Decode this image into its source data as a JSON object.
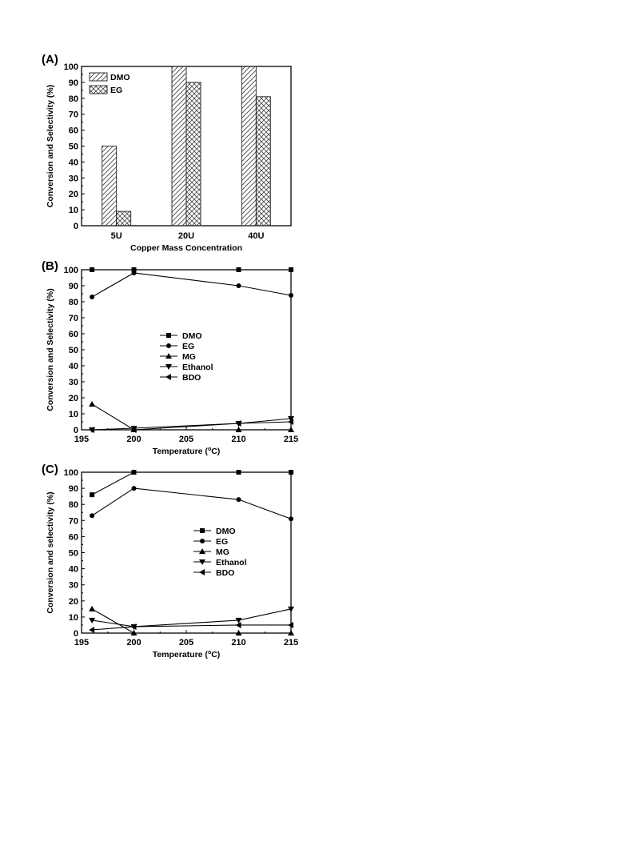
{
  "chart_data": [
    {
      "panel_label": "(A)",
      "type": "bar",
      "title": "",
      "xlabel": "Copper Mass Concentration",
      "ylabel": "Conversion and Selectivity (%)",
      "ylim": [
        0,
        100
      ],
      "yticks": [
        "0",
        "10",
        "20",
        "30",
        "40",
        "50",
        "60",
        "70",
        "80",
        "90",
        "100"
      ],
      "categories": [
        "5U",
        "20U",
        "40U"
      ],
      "series": [
        {
          "name": "DMO",
          "values": [
            50,
            100,
            100
          ],
          "pattern": "diagonal"
        },
        {
          "name": "EG",
          "values": [
            9,
            90,
            81
          ],
          "pattern": "crosshatch"
        }
      ],
      "legend_position": "top-left",
      "grid": false
    },
    {
      "panel_label": "(B)",
      "type": "line",
      "title": "",
      "xlabel": "Temperature (",
      "xlabel_sup": "o",
      "xlabel_tail": "C)",
      "ylabel": "Conversion and Selectivity (%)",
      "xlim": [
        195,
        215
      ],
      "ylim": [
        0,
        100
      ],
      "xticks": [
        "195",
        "200",
        "205",
        "210",
        "215"
      ],
      "yticks": [
        "0",
        "10",
        "20",
        "30",
        "40",
        "50",
        "60",
        "70",
        "80",
        "90",
        "100"
      ],
      "x": [
        196,
        200,
        210,
        215
      ],
      "series": [
        {
          "name": "DMO",
          "marker": "square",
          "values": [
            100,
            100,
            100,
            100
          ]
        },
        {
          "name": "EG",
          "marker": "circle",
          "values": [
            83,
            98,
            90,
            84
          ]
        },
        {
          "name": "MG",
          "marker": "triangle-up",
          "values": [
            16,
            0,
            0,
            0
          ]
        },
        {
          "name": "Ethanol",
          "marker": "triangle-down",
          "values": [
            0,
            1,
            4,
            7
          ]
        },
        {
          "name": "BDO",
          "marker": "triangle-left",
          "values": [
            0,
            0,
            4,
            5
          ]
        }
      ],
      "legend_position": "center",
      "grid": false
    },
    {
      "panel_label": "(C)",
      "type": "line",
      "title": "",
      "xlabel": "Temperature (",
      "xlabel_sup": "o",
      "xlabel_tail": "C)",
      "ylabel": "Conversion and selectivity (%)",
      "xlim": [
        195,
        215
      ],
      "ylim": [
        0,
        100
      ],
      "xticks": [
        "195",
        "200",
        "205",
        "210",
        "215"
      ],
      "yticks": [
        "0",
        "10",
        "20",
        "30",
        "40",
        "50",
        "60",
        "70",
        "80",
        "90",
        "100"
      ],
      "x": [
        196,
        200,
        210,
        215
      ],
      "series": [
        {
          "name": "DMO",
          "marker": "square",
          "values": [
            86,
            100,
            100,
            100
          ]
        },
        {
          "name": "EG",
          "marker": "circle",
          "values": [
            73,
            90,
            83,
            71
          ]
        },
        {
          "name": "MG",
          "marker": "triangle-up",
          "values": [
            15,
            0,
            0,
            0
          ]
        },
        {
          "name": "Ethanol",
          "marker": "triangle-down",
          "values": [
            8,
            4,
            8,
            15
          ]
        },
        {
          "name": "BDO",
          "marker": "triangle-left",
          "values": [
            2,
            4,
            5,
            5
          ]
        }
      ],
      "legend_position": "center-right",
      "grid": false
    }
  ]
}
